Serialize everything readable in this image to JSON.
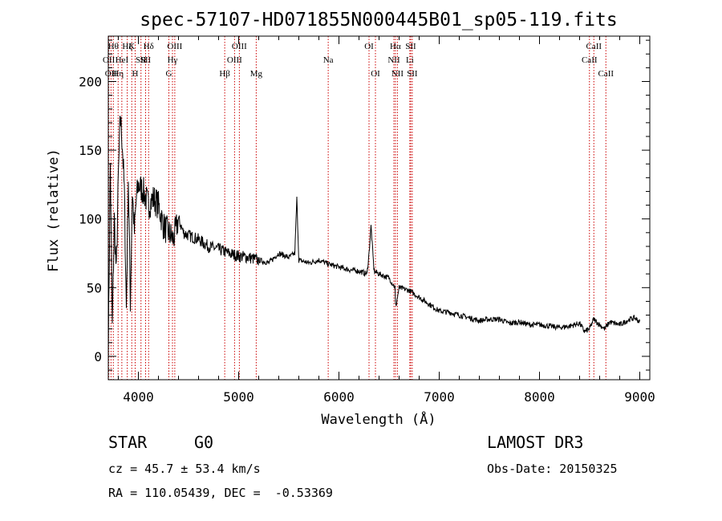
{
  "title": "spec-57107-HD071855N000445B01_sp05-119.fits",
  "info": {
    "class": "STAR",
    "subclass": "G0",
    "survey": "LAMOST DR3",
    "cz": "cz = 45.7 ± 53.4 km/s",
    "obs_date": "Obs-Date: 20150325",
    "coords": "RA = 110.05439, DEC =  -0.53369"
  },
  "colors": {
    "line": "#000000",
    "marker": "#cc0000",
    "background": "#ffffff"
  },
  "chart_data": {
    "type": "line",
    "title": "spec-57107-HD071855N000445B01_sp05-119.fits",
    "xlabel": "Wavelength (Å)",
    "ylabel": "Flux (relative)",
    "xlim": [
      3700,
      9100
    ],
    "ylim": [
      -17,
      233
    ],
    "xticks": [
      4000,
      5000,
      6000,
      7000,
      8000,
      9000
    ],
    "yticks": [
      0,
      50,
      100,
      150,
      200
    ],
    "series": [
      {
        "name": "flux",
        "x": [
          3700,
          3720,
          3740,
          3760,
          3780,
          3800,
          3820,
          3840,
          3860,
          3880,
          3900,
          3920,
          3940,
          3960,
          3980,
          4000,
          4050,
          4100,
          4150,
          4200,
          4250,
          4300,
          4350,
          4400,
          4450,
          4500,
          4600,
          4700,
          4800,
          4900,
          5000,
          5100,
          5200,
          5300,
          5400,
          5500,
          5560,
          5580,
          5600,
          5700,
          5800,
          5900,
          6000,
          6100,
          6200,
          6280,
          6300,
          6320,
          6350,
          6400,
          6500,
          6560,
          6565,
          6600,
          6700,
          6800,
          6900,
          7000,
          7100,
          7200,
          7300,
          7400,
          7500,
          7600,
          7700,
          7800,
          7900,
          8000,
          8100,
          8200,
          8300,
          8400,
          8450,
          8500,
          8540,
          8600,
          8650,
          8700,
          8800,
          8900,
          8950,
          9000
        ],
        "y": [
          5,
          140,
          20,
          100,
          60,
          130,
          175,
          155,
          120,
          35,
          130,
          40,
          120,
          90,
          115,
          125,
          120,
          110,
          115,
          110,
          95,
          90,
          85,
          100,
          90,
          88,
          85,
          80,
          78,
          75,
          73,
          72,
          70,
          68,
          75,
          72,
          75,
          115,
          70,
          68,
          70,
          67,
          65,
          63,
          62,
          60,
          75,
          95,
          62,
          60,
          57,
          50,
          35,
          50,
          48,
          43,
          38,
          33,
          32,
          30,
          28,
          26,
          27,
          27,
          24,
          25,
          23,
          23,
          22,
          21,
          22,
          24,
          18,
          20,
          27,
          23,
          20,
          25,
          23,
          27,
          28,
          25
        ]
      }
    ],
    "lines": [
      {
        "x": 3705,
        "label": "OII",
        "row": 2
      },
      {
        "x": 3727,
        "label": "OII",
        "row": 3
      },
      {
        "x": 3750,
        "label": "Hθ",
        "row": 1
      },
      {
        "x": 3798,
        "label": "Hη",
        "row": 3
      },
      {
        "x": 3835,
        "label": "HeI",
        "row": 2
      },
      {
        "x": 3889,
        "label": "Hζ",
        "row": 1
      },
      {
        "x": 3934,
        "label": "K",
        "row": 1
      },
      {
        "x": 3968,
        "label": "H",
        "row": 3
      },
      {
        "x": 4026,
        "label": "SII",
        "row": 2
      },
      {
        "x": 4072,
        "label": "SII",
        "row": 2
      },
      {
        "x": 4102,
        "label": "Hδ",
        "row": 1
      },
      {
        "x": 4304,
        "label": "G",
        "row": 3
      },
      {
        "x": 4340,
        "label": "Hγ",
        "row": 2
      },
      {
        "x": 4363,
        "label": "OIII",
        "row": 1
      },
      {
        "x": 4861,
        "label": "Hβ",
        "row": 3
      },
      {
        "x": 4959,
        "label": "OIII",
        "row": 2
      },
      {
        "x": 5007,
        "label": "OIII",
        "row": 1
      },
      {
        "x": 5175,
        "label": "Mg",
        "row": 3
      },
      {
        "x": 5893,
        "label": "Na",
        "row": 2
      },
      {
        "x": 6300,
        "label": "OI",
        "row": 1
      },
      {
        "x": 6364,
        "label": "OI",
        "row": 3
      },
      {
        "x": 6548,
        "label": "NII",
        "row": 2
      },
      {
        "x": 6563,
        "label": "Hα",
        "row": 1
      },
      {
        "x": 6583,
        "label": "NII",
        "row": 3
      },
      {
        "x": 6707,
        "label": "Li",
        "row": 2
      },
      {
        "x": 6716,
        "label": "SII",
        "row": 1
      },
      {
        "x": 6731,
        "label": "SII",
        "row": 3
      },
      {
        "x": 8498,
        "label": "CaII",
        "row": 2
      },
      {
        "x": 8542,
        "label": "CaII",
        "row": 1
      },
      {
        "x": 8662,
        "label": "CaII",
        "row": 3
      }
    ]
  }
}
